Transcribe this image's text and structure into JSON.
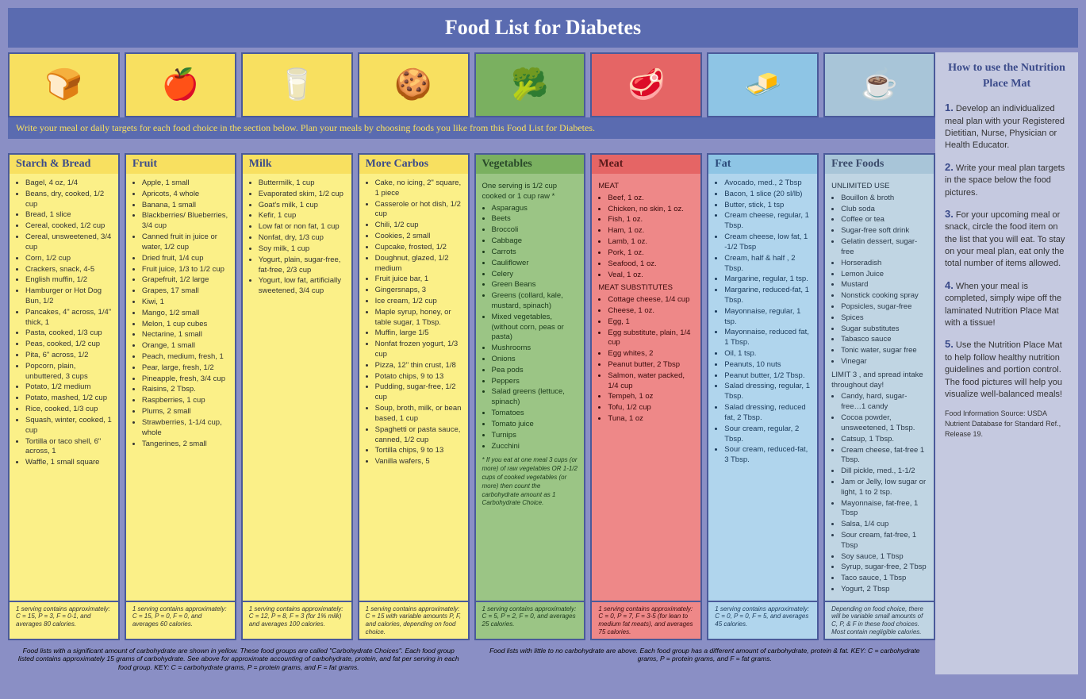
{
  "title": "Food List for Diabetes",
  "instruction": "Write your meal or daily targets for each food choice in the section below. Plan your meals by choosing foods you like from this Food List for Diabetes.",
  "columns": [
    {
      "id": "starch",
      "title": "Starch & Bread",
      "color_hdr": "c-yellow",
      "color_body": "c-yellow-l",
      "icon": "🍞",
      "items": [
        "Bagel, 4 oz, 1/4",
        "Beans, dry, cooked, 1/2 cup",
        "Bread, 1 slice",
        "Cereal, cooked, 1/2 cup",
        "Cereal, unsweetened, 3/4 cup",
        "Corn, 1/2 cup",
        "Crackers, snack, 4-5",
        "English muffin, 1/2",
        "Hamburger or Hot Dog Bun, 1/2",
        "Pancakes, 4\" across, 1/4\" thick, 1",
        "Pasta, cooked, 1/3 cup",
        "Peas, cooked, 1/2 cup",
        "Pita, 6\" across, 1/2",
        "Popcorn, plain, unbuttered, 3 cups",
        "Potato, 1/2 medium",
        "Potato, mashed, 1/2 cup",
        "Rice, cooked, 1/3 cup",
        "Squash, winter, cooked, 1 cup",
        "Tortilla or taco shell, 6\" across, 1",
        "Waffle, 1 small square"
      ],
      "footer": "1 serving contains approximately: C = 15, P = 3, F = 0-1, and averages 80 calories."
    },
    {
      "id": "fruit",
      "title": "Fruit",
      "color_hdr": "c-yellow",
      "color_body": "c-yellow-l",
      "icon": "🍎",
      "items": [
        "Apple, 1 small",
        "Apricots, 4 whole",
        "Banana, 1 small",
        "Blackberries/ Blueberries, 3/4 cup",
        "Canned fruit in juice or water, 1/2 cup",
        "Dried fruit, 1/4 cup",
        "Fruit juice, 1/3 to 1/2 cup",
        "Grapefruit, 1/2 large",
        "Grapes, 17 small",
        "Kiwi, 1",
        "Mango, 1/2 small",
        "Melon, 1 cup cubes",
        "Nectarine, 1 small",
        "Orange, 1 small",
        "Peach, medium, fresh, 1",
        "Pear, large, fresh, 1/2",
        "Pineapple, fresh, 3/4 cup",
        "Raisins, 2 Tbsp.",
        "Raspberries, 1 cup",
        "Plums, 2 small",
        "Strawberries, 1-1/4 cup, whole",
        "Tangerines, 2 small"
      ],
      "footer": "1 serving contains approximately: C = 15, P = 0, F = 0, and averages 60 calories."
    },
    {
      "id": "milk",
      "title": "Milk",
      "color_hdr": "c-yellow",
      "color_body": "c-yellow-l",
      "icon": "🥛",
      "items": [
        "Buttermilk, 1 cup",
        "Evaporated skim, 1/2 cup",
        "Goat's milk, 1 cup",
        "Kefir, 1 cup",
        "Low fat or non fat, 1 cup",
        "Nonfat, dry, 1/3 cup",
        "Soy milk, 1 cup",
        "Yogurt, plain, sugar-free, fat-free, 2/3 cup",
        "Yogurt, low fat, artificially sweetened, 3/4 cup"
      ],
      "footer": "1 serving contains approximately: C = 12, P = 8, F = 3 (for 1% milk) and averages 100 calories."
    },
    {
      "id": "carbs",
      "title": "More Carbos",
      "color_hdr": "c-yellow",
      "color_body": "c-yellow-l",
      "icon": "🍪",
      "items": [
        "Cake, no icing, 2\" square, 1 piece",
        "Casserole or hot dish, 1/2 cup",
        "Chili, 1/2 cup",
        "Cookies, 2 small",
        "Cupcake, frosted, 1/2",
        "Doughnut, glazed, 1/2 medium",
        "Fruit juice bar, 1",
        "Gingersnaps, 3",
        "Ice cream, 1/2 cup",
        "Maple syrup, honey, or table sugar, 1 Tbsp.",
        "Muffin, large 1/5",
        "Nonfat frozen yogurt, 1/3 cup",
        "Pizza, 12\" thin crust, 1/8",
        "Potato chips, 9 to 13",
        "Pudding, sugar-free, 1/2 cup",
        "Soup, broth, milk, or bean based, 1 cup",
        "Spaghetti or pasta sauce, canned, 1/2 cup",
        "Tortilla chips, 9 to 13",
        "Vanilla wafers, 5"
      ],
      "footer": "1 serving contains approximately: C = 15 with variable amounts P, F, and calories, depending on food choice."
    },
    {
      "id": "veg",
      "title": "Vegetables",
      "color_hdr": "c-green",
      "color_body": "c-green-l",
      "icon": "🥦",
      "pre": "One serving is 1/2 cup cooked or 1 cup raw *",
      "items": [
        "Asparagus",
        "Beets",
        "Broccoli",
        "Cabbage",
        "Carrots",
        "Cauliflower",
        "Celery",
        "Green Beans",
        "Greens (collard, kale, mustard, spinach)",
        "Mixed vegetables, (without corn, peas or pasta)",
        "Mushrooms",
        "Onions",
        "Pea pods",
        "Peppers",
        "Salad greens (lettuce, spinach)",
        "Tomatoes",
        "Tomato juice",
        "Turnips",
        "Zucchini"
      ],
      "note": "* If you eat at one meal 3 cups (or more) of raw vegetables OR 1-1/2 cups of cooked vegetables (or more) then count the carbohydrate amount as 1 Carbohydrate Choice.",
      "footer": "1 serving contains approximately: C = 5, P = 2, F = 0, and averages 25 calories."
    },
    {
      "id": "meat",
      "title": "Meat",
      "color_hdr": "c-red",
      "color_body": "c-red-l",
      "icon": "🥩",
      "sub1": "MEAT",
      "items1": [
        "Beef, 1 oz.",
        "Chicken, no skin, 1 oz.",
        "Fish, 1 oz.",
        "Ham, 1 oz.",
        "Lamb, 1 oz.",
        "Pork, 1 oz.",
        "Seafood, 1 oz.",
        "Veal, 1 oz."
      ],
      "sub2": "MEAT SUBSTITUTES",
      "items2": [
        "Cottage cheese, 1/4 cup",
        "Cheese, 1 oz.",
        "Egg, 1",
        "Egg substitute, plain, 1/4 cup",
        "Egg whites, 2",
        "Peanut butter, 2 Tbsp",
        "Salmon, water packed, 1/4 cup",
        "Tempeh, 1 oz",
        "Tofu, 1/2 cup",
        "Tuna, 1 oz"
      ],
      "footer": "1 serving contains approximately: C = 0, P = 7, F = 3-5 (for lean to medium fat meats), and averages 75 calories."
    },
    {
      "id": "fat",
      "title": "Fat",
      "color_hdr": "c-blue",
      "color_body": "c-blue-l",
      "icon": "🧈",
      "items": [
        "Avocado, med., 2 Tbsp",
        "Bacon, 1 slice (20 sl/lb)",
        "Butter, stick, 1 tsp",
        "Cream cheese, regular, 1 Tbsp.",
        "Cream cheese, low fat, 1 -1/2 Tbsp",
        "Cream, half & half , 2 Tbsp.",
        "Margarine, regular, 1 tsp.",
        "Margarine, reduced-fat, 1 Tbsp.",
        "Mayonnaise, regular, 1 tsp.",
        "Mayonnaise, reduced fat, 1 Tbsp.",
        "Oil, 1 tsp.",
        "Peanuts, 10 nuts",
        "Peanut butter, 1/2 Tbsp.",
        "Salad dressing, regular, 1 Tbsp.",
        "Salad dressing, reduced fat, 2 Tbsp.",
        "Sour cream, regular, 2 Tbsp.",
        "Sour cream, reduced-fat, 3 Tbsp."
      ],
      "footer": "1 serving contains approximately: C = 0, P = 0, F = 5, and averages 45 calories."
    },
    {
      "id": "free",
      "title": "Free Foods",
      "color_hdr": "c-ltblue",
      "color_body": "c-ltblue-l",
      "icon": "☕",
      "sub1": "UNLIMITED USE",
      "items1": [
        "Bouillon & broth",
        "Club soda",
        "Coffee or tea",
        "Sugar-free soft drink",
        "Gelatin dessert, sugar-free",
        "Horseradish",
        "Lemon Juice",
        "Mustard",
        "Nonstick cooking spray",
        "Popsicles, sugar-free",
        "Spices",
        "Sugar substitutes",
        "Tabasco sauce",
        "Tonic water, sugar free",
        "Vinegar"
      ],
      "sub2": "LIMIT 3 , and spread intake throughout day!",
      "items2": [
        "Candy, hard, sugar-free…1 candy",
        "Cocoa powder, unsweetened, 1 Tbsp.",
        "Catsup, 1 Tbsp.",
        "Cream cheese, fat-free 1 Tbsp.",
        "Dill pickle, med., 1-1/2",
        "Jam or Jelly, low sugar or light, 1 to 2 tsp.",
        "Mayonnaise, fat-free, 1 Tbsp",
        "Salsa, 1/4 cup",
        "Sour cream, fat-free, 1 Tbsp",
        "Soy sauce, 1 Tbsp",
        "Syrup, sugar-free, 2 Tbsp",
        "Taco sauce, 1 Tbsp",
        "Yogurt, 2 Tbsp"
      ],
      "footer": "Depending on food choice, there will be variable small amounts of C, P, & F in these food choices. Most contain negligible calories."
    }
  ],
  "bottom_note_left": "Food lists with a significant amount of carbohydrate are shown in yellow. These food groups are called \"Carbohydrate Choices\". Each food group listed contains approximately 15 grams of carbohydrate. See above for approximate accounting of carbohydrate, protein, and fat per serving in each food group. KEY: C = carbohydrate grams, P = protein grams, and F = fat grams.",
  "bottom_note_right": "Food lists with little to no carbohydrate are above. Each food group has a different amount of carbohydrate, protein & fat. KEY: C = carbohydrate grams, P = protein grams, and F = fat grams.",
  "sidebar": {
    "title": "How to use the Nutrition Place Mat",
    "steps": [
      "Develop an individualized meal plan with your Registered Dietitian, Nurse, Physician or Health Educator.",
      "Write your meal plan targets in the space below the food pictures.",
      "For your upcoming meal or snack, circle the food item on the list that you will eat. To stay on your meal plan, eat only the total number of items allowed.",
      "When your meal is completed, simply wipe off the laminated Nutrition Place Mat with a tissue!",
      "Use the Nutrition Place Mat to help follow healthy nutrition guidelines and portion control. The food pictures will help you visualize well-balanced meals!"
    ],
    "source": "Food Information Source: USDA Nutrient Database for Standard Ref., Release 19."
  }
}
